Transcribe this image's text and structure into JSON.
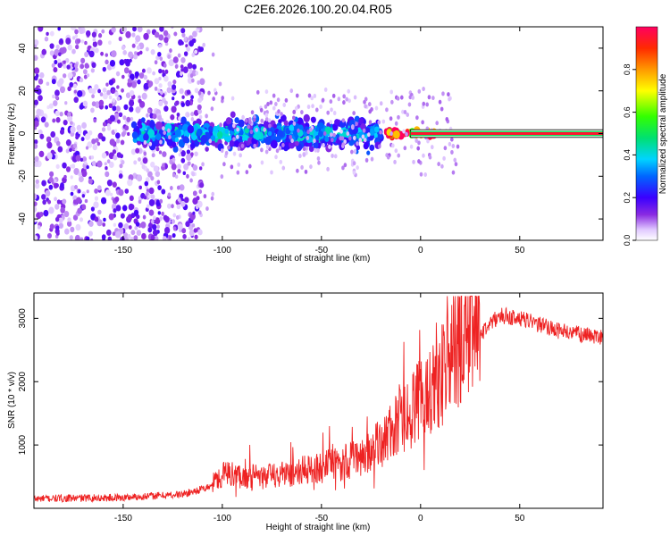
{
  "title": "C2E6.2026.100.20.04.R05",
  "chart_data": [
    {
      "type": "heatmap",
      "xlabel": "Height of straight line (km)",
      "ylabel": "Frequency (Hz)",
      "xlim": [
        -195,
        92
      ],
      "ylim": [
        -50,
        50
      ],
      "x_ticks": [
        -150,
        -100,
        -50,
        0,
        50
      ],
      "y_ticks": [
        -40,
        -20,
        0,
        20,
        40
      ],
      "x_tick_labels": [
        "-150",
        "-100",
        "-50",
        "0",
        "50"
      ],
      "y_tick_labels": [
        "-40",
        "-20",
        "0",
        "20",
        "40"
      ],
      "colorbar": {
        "label": "Normalized spectral amplitude",
        "range": [
          0,
          1
        ],
        "ticks": [
          0.0,
          0.2,
          0.4,
          0.6,
          0.8
        ],
        "tick_labels": [
          "0.0",
          "0.2",
          "0.4",
          "0.6",
          "0.8"
        ]
      },
      "features": [
        {
          "x_range": [
            -195,
            -110
          ],
          "freq_spread_hz": 50,
          "amplitude": 0.1
        },
        {
          "x_range": [
            -145,
            -20
          ],
          "freq_spread_hz": 8,
          "amplitude": 0.35
        },
        {
          "x_range": [
            -20,
            10
          ],
          "freq_spread_hz": 2,
          "amplitude": 0.9
        },
        {
          "x_range": [
            10,
            92
          ],
          "freq_spread_hz": 1,
          "amplitude": 0.95
        }
      ]
    },
    {
      "type": "line",
      "xlabel": "Height of straight line (km)",
      "ylabel": "SNR (10 * v/v)",
      "xlim": [
        -195,
        92
      ],
      "ylim": [
        0,
        3400
      ],
      "x_ticks": [
        -150,
        -100,
        -50,
        0,
        50
      ],
      "y_ticks": [
        1000,
        2000,
        3000
      ],
      "x_tick_labels": [
        "-150",
        "-100",
        "-50",
        "0",
        "50"
      ],
      "y_tick_labels": [
        "1000",
        "2000",
        "3000"
      ],
      "series": [
        {
          "color": "#ee2222",
          "trend_x": [
            -195,
            -150,
            -120,
            -105,
            -100,
            -80,
            -60,
            -40,
            -25,
            -10,
            0,
            10,
            20,
            30,
            40,
            50,
            60,
            70,
            80,
            92
          ],
          "trend_y": [
            150,
            170,
            220,
            350,
            480,
            430,
            520,
            620,
            780,
            1200,
            1500,
            1850,
            2300,
            2750,
            3050,
            3000,
            2900,
            2800,
            2750,
            2700
          ]
        }
      ]
    }
  ]
}
